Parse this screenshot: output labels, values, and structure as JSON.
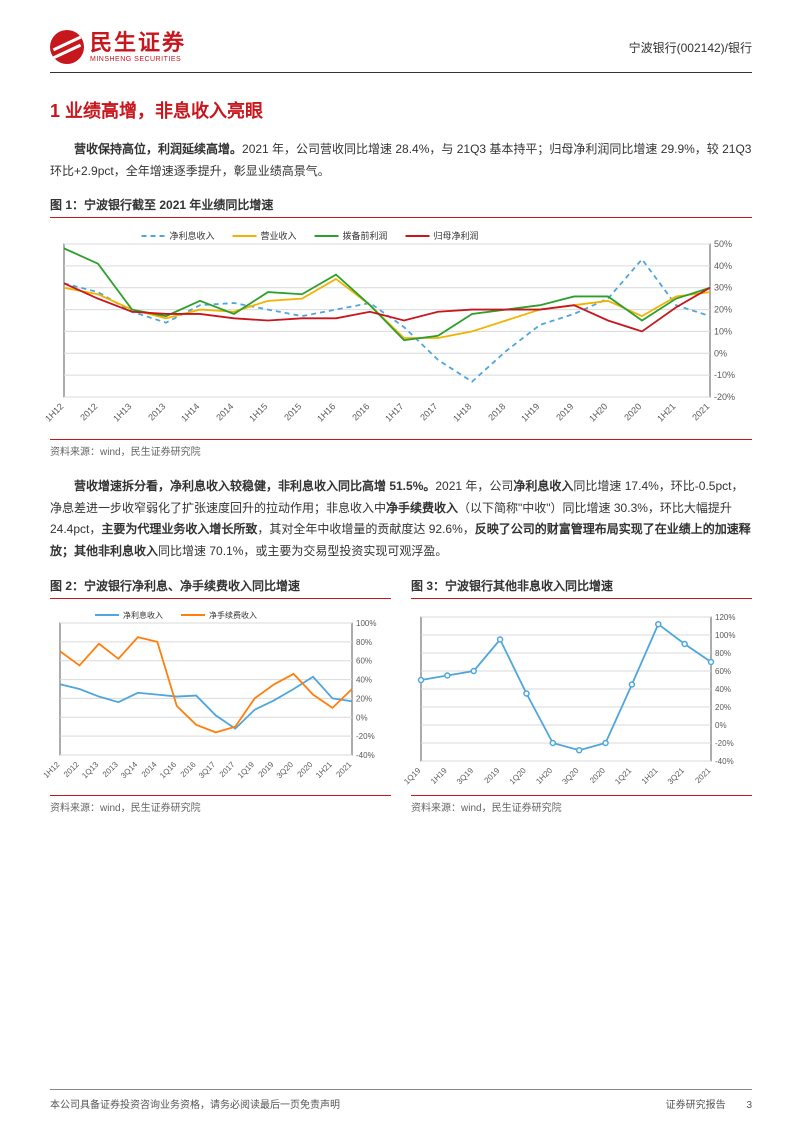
{
  "header": {
    "logo_cn": "民生证券",
    "logo_en": "MINSHENG SECURITIES",
    "stock": "宁波银行(002142)/银行",
    "brand_color": "#c8161d"
  },
  "section": {
    "title": "1 业绩高增，非息收入亮眼",
    "para1_pre": "营收保持高位，利润延续高增。",
    "para1_rest": "2021 年，公司营收同比增速 28.4%，与 21Q3 基本持平；归母净利润同比增速 29.9%，较 21Q3 环比+2.9pct，全年增速逐季提升，彰显业绩高景气。",
    "para2_pre": "营收增速拆分看，净利息收入较稳健，非利息收入同比高增 51.5%。",
    "para2_rest1": "2021 年，公司",
    "para2_bold1": "净利息收入",
    "para2_rest2": "同比增速 17.4%，环比-0.5pct，净息差进一步收窄弱化了扩张速度回升的拉动作用；非息收入中",
    "para2_bold2": "净手续费收入",
    "para2_rest3": "（以下简称\"中收\"）同比增速 30.3%，环比大幅提升 24.4pct，",
    "para2_bold3": "主要为代理业务收入增长所致",
    "para2_rest4": "，其对全年中收增量的贡献度达 92.6%，",
    "para2_bold4": "反映了公司的财富管理布局实现了在业绩上的加速释放；其他非利息收入",
    "para2_rest5": "同比增速 70.1%，或主要为交易型投资实现可观浮盈。"
  },
  "fig1": {
    "title": "图 1：宁波银行截至 2021 年业绩同比增速",
    "source": "资料来源：wind，民生证券研究院",
    "type": "line",
    "background_color": "#ffffff",
    "grid_color": "#d9d9d9",
    "border_color": "#595959",
    "label_fontsize": 9,
    "ylim": [
      -20,
      50
    ],
    "ytick_step": 10,
    "categories": [
      "1H12",
      "2012",
      "1H13",
      "2013",
      "1H14",
      "2014",
      "1H15",
      "2015",
      "1H16",
      "2016",
      "1H17",
      "2017",
      "1H18",
      "2018",
      "1H19",
      "2019",
      "1H20",
      "2020",
      "1H21",
      "2021"
    ],
    "series": [
      {
        "name": "净利息收入",
        "color": "#4ea6dc",
        "dash": "5,4",
        "values": [
          32,
          28,
          19,
          14,
          22,
          23,
          20,
          17,
          20,
          23,
          12,
          -3,
          -13,
          1,
          13,
          18,
          25,
          43,
          22,
          17
        ]
      },
      {
        "name": "营业收入",
        "color": "#f2b200",
        "dash": "",
        "values": [
          30,
          27,
          20,
          16,
          20,
          19,
          24,
          25,
          34,
          22,
          7,
          7,
          10,
          15,
          20,
          22,
          24,
          17,
          26,
          28
        ]
      },
      {
        "name": "拨备前利润",
        "color": "#2ca02c",
        "dash": "",
        "values": [
          48,
          41,
          20,
          17,
          24,
          18,
          28,
          27,
          36,
          22,
          6,
          8,
          18,
          20,
          22,
          26,
          26,
          15,
          25,
          30
        ]
      },
      {
        "name": "归母净利润",
        "color": "#c8161d",
        "dash": "",
        "values": [
          32,
          25,
          19,
          18,
          18,
          16,
          15,
          16,
          16,
          19,
          15,
          19,
          20,
          20,
          20,
          22,
          15,
          10,
          21,
          30
        ]
      }
    ]
  },
  "fig2": {
    "title": "图 2：宁波银行净利息、净手续费收入同比增速",
    "source": "资料来源：wind，民生证券研究院",
    "type": "line",
    "background_color": "#ffffff",
    "grid_color": "#d9d9d9",
    "border_color": "#595959",
    "label_fontsize": 8,
    "ylim": [
      -40,
      100
    ],
    "ytick_step": 20,
    "categories": [
      "1H12",
      "2012",
      "1Q13",
      "2013",
      "3Q14",
      "2014",
      "1Q16",
      "2016",
      "3Q17",
      "2017",
      "1Q19",
      "2019",
      "3Q20",
      "2020",
      "1H21",
      "2021"
    ],
    "series": [
      {
        "name": "净利息收入",
        "color": "#4ea6dc",
        "dash": "",
        "values": [
          35,
          30,
          22,
          16,
          26,
          24,
          22,
          23,
          2,
          -12,
          8,
          18,
          30,
          43,
          20,
          17
        ]
      },
      {
        "name": "净手续费收入",
        "color": "#ff7f0e",
        "dash": "",
        "values": [
          70,
          55,
          78,
          62,
          85,
          80,
          12,
          -8,
          -16,
          -10,
          20,
          35,
          46,
          24,
          10,
          30
        ]
      }
    ]
  },
  "fig3": {
    "title": "图 3：宁波银行其他非息收入同比增速",
    "source": "资料来源：wind，民生证券研究院",
    "type": "line",
    "background_color": "#ffffff",
    "grid_color": "#d9d9d9",
    "border_color": "#595959",
    "label_fontsize": 8,
    "ylim": [
      -40,
      120
    ],
    "ytick_step": 20,
    "categories": [
      "1Q19",
      "1H19",
      "3Q19",
      "2019",
      "1Q20",
      "1H20",
      "3Q20",
      "2020",
      "1Q21",
      "1H21",
      "3Q21",
      "2021"
    ],
    "series": [
      {
        "name": "其他非息收入",
        "color": "#4ea6dc",
        "dash": "",
        "values": [
          50,
          55,
          60,
          95,
          35,
          -20,
          -28,
          -20,
          45,
          112,
          90,
          70
        ]
      }
    ]
  },
  "footer": {
    "left": "本公司具备证券投资咨询业务资格，请务必阅读最后一页免责声明",
    "right": "证券研究报告",
    "page": "3"
  }
}
